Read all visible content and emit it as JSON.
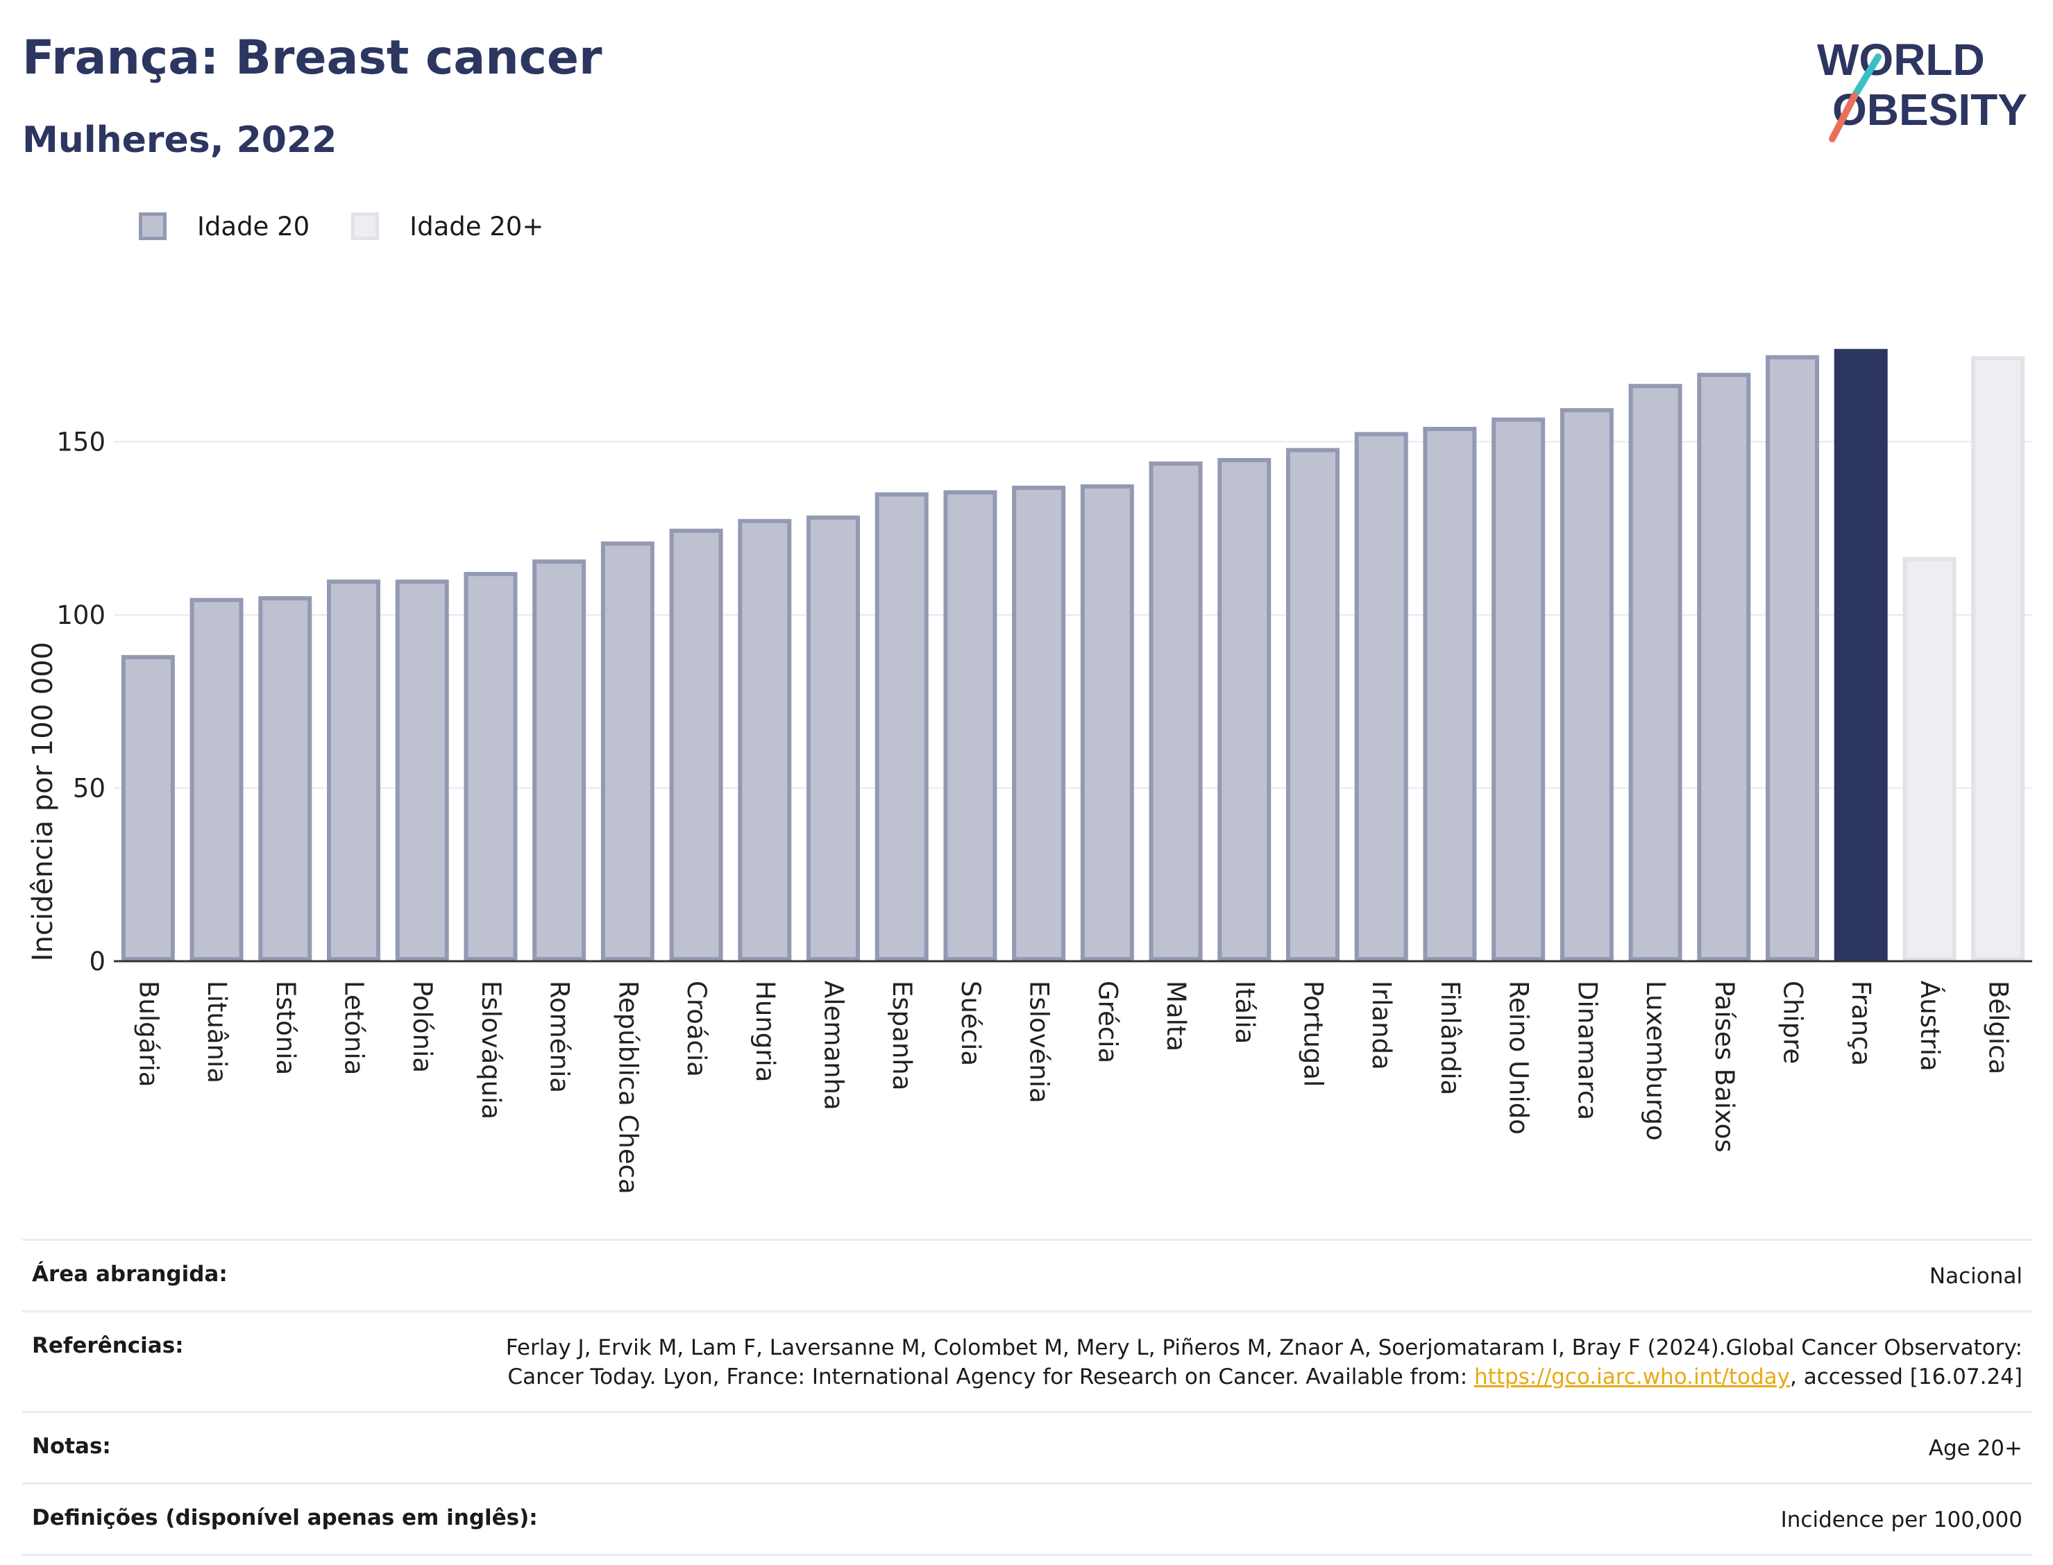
{
  "header": {
    "title": "França: Breast cancer",
    "subtitle": "Mulheres, 2022",
    "logo_line1": "WORLD",
    "logo_line2": "OBESITY"
  },
  "legend": {
    "items": [
      "Idade 20",
      "Idade 20+"
    ]
  },
  "colors": {
    "bar_fill": "#bec1cf",
    "bar_stroke": "#9499b3",
    "highlight": "#2d3561",
    "light_fill": "#edeef2",
    "light_stroke": "#e2e3e9",
    "title": "#2d3561",
    "link": "#e8a914"
  },
  "chart_data": {
    "type": "bar",
    "ylabel": "Incidência por 100 000",
    "xlabel": "",
    "ylim": [
      0,
      182
    ],
    "yticks": [
      0,
      50,
      100,
      150
    ],
    "grid": true,
    "legend_position": "top-left",
    "categories": [
      "Bulgária",
      "Lituânia",
      "Estónia",
      "Letónia",
      "Polónia",
      "Eslováquia",
      "Roménia",
      "República Checa",
      "Croácia",
      "Hungria",
      "Alemanha",
      "Espanha",
      "Suécia",
      "Eslovénia",
      "Grécia",
      "Malta",
      "Itália",
      "Portugal",
      "Irlanda",
      "Finlândia",
      "Reino Unido",
      "Dinamarca",
      "Luxemburgo",
      "Países Baixos",
      "Chipre",
      "França",
      "Áustria",
      "Bélgica"
    ],
    "values": [
      88.4,
      104.9,
      105.4,
      110.2,
      110.2,
      112.4,
      116.0,
      121.2,
      124.9,
      127.7,
      128.7,
      135.4,
      136.0,
      137.3,
      137.7,
      144.3,
      145.3,
      148.2,
      152.8,
      154.3,
      157.0,
      159.7,
      166.7,
      169.9,
      175.0,
      176.8,
      116.7,
      174.7
    ],
    "series_style": [
      "age20",
      "age20",
      "age20",
      "age20",
      "age20",
      "age20",
      "age20",
      "age20",
      "age20",
      "age20",
      "age20",
      "age20",
      "age20",
      "age20",
      "age20",
      "age20",
      "age20",
      "age20",
      "age20",
      "age20",
      "age20",
      "age20",
      "age20",
      "age20",
      "age20",
      "highlight",
      "age20plus",
      "age20plus"
    ]
  },
  "info": {
    "area_label": "Área abrangida:",
    "area_value": "Nacional",
    "refs_label": "Referências:",
    "refs_text_1": "Ferlay J, Ervik M, Lam F, Laversanne M, Colombet M, Mery L, Piñeros M, Znaor A, Soerjomataram I, Bray F (2024).Global Cancer Observatory: Cancer Today. Lyon, France: International Agency for Research on Cancer. Available from: ",
    "refs_link": "https://gco.iarc.who.int/today",
    "refs_text_2": ", accessed [16.07.24]",
    "notes_label": "Notas:",
    "notes_value": "Age 20+",
    "defs_label": "Definições (disponível apenas em inglês):",
    "defs_value": "Incidence per 100,000"
  }
}
